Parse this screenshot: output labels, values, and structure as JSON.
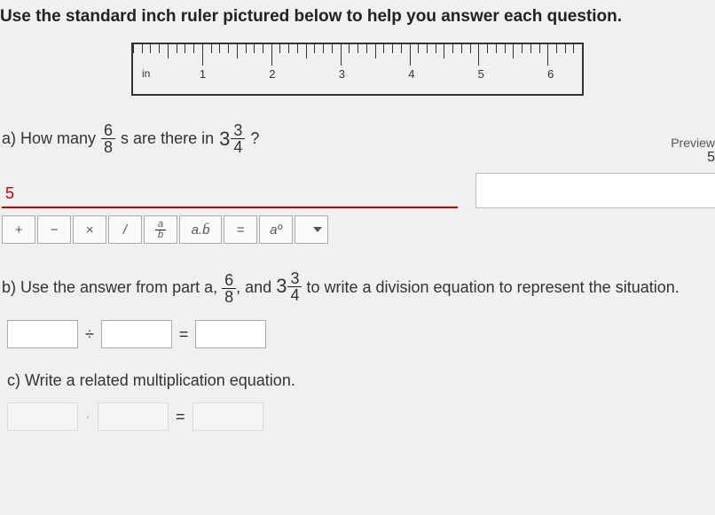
{
  "instruction": "Use the standard inch ruler pictured below to help you answer each question.",
  "ruler": {
    "unit_label": "in",
    "labels": [
      "1",
      "2",
      "3",
      "4",
      "5",
      "6"
    ],
    "major_count": 6,
    "ticks_per_inch": 8
  },
  "partA": {
    "prefix": "a) How many",
    "frac_num": "6",
    "frac_den": "8",
    "mid": "s are there in",
    "mixed_whole": "3",
    "mixed_num": "3",
    "mixed_den": "4",
    "suffix": "?",
    "answer_value": "5"
  },
  "preview": {
    "label": "Preview",
    "side_value": "5"
  },
  "toolbar": {
    "buttons": [
      "+",
      "−",
      "×",
      "/",
      "a/b",
      "a.b̄",
      "=",
      "aº"
    ],
    "dropdown": "▾"
  },
  "partB": {
    "prefix": "b) Use the answer from part a,",
    "frac_num": "6",
    "frac_den": "8",
    "sep": ", and",
    "mixed_whole": "3",
    "mixed_num": "3",
    "mixed_den": "4",
    "suffix": "to write a division equation to represent the situation.",
    "op1": "÷",
    "op2": "="
  },
  "partC": {
    "text": "c) Write a related multiplication equation.",
    "op2": "="
  },
  "colors": {
    "text": "#333333",
    "accent": "#c00000",
    "border": "#aaaaaa",
    "ruler_border": "#333333",
    "bg": "#f0f0f0"
  }
}
